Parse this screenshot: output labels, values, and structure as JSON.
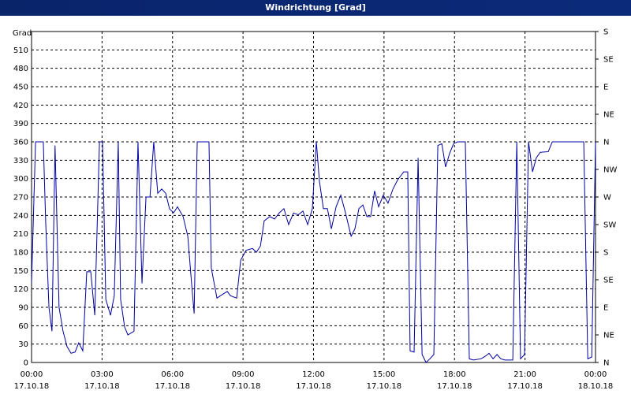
{
  "chart_data": {
    "type": "line",
    "title": "Windrichtung [Grad]",
    "y_label": "Grad",
    "color": "#0000a0",
    "grid": true,
    "xlim": [
      0,
      24
    ],
    "xticks": [
      {
        "value": 0,
        "label": "00:00 17.10.18"
      },
      {
        "value": 3,
        "label": "03:00 17.10.18"
      },
      {
        "value": 6,
        "label": "06:00 17.10.18"
      },
      {
        "value": 9,
        "label": "09:00 17.10.18"
      },
      {
        "value": 12,
        "label": "12:00 17.10.18"
      },
      {
        "value": 15,
        "label": "15:00 17.10.18"
      },
      {
        "value": 18,
        "label": "18:00 17.10.18"
      },
      {
        "value": 21,
        "label": "21:00 17.10.18"
      },
      {
        "value": 24,
        "label": "00:00 18.10.18"
      }
    ],
    "ylim": [
      0,
      540
    ],
    "yticks": [
      0,
      30,
      60,
      90,
      120,
      150,
      180,
      210,
      240,
      270,
      300,
      330,
      360,
      390,
      420,
      450,
      480,
      510
    ],
    "y2lim": [
      0,
      540
    ],
    "y2ticks": [
      {
        "value": 0,
        "label": "N"
      },
      {
        "value": 45,
        "label": "NE"
      },
      {
        "value": 90,
        "label": "E"
      },
      {
        "value": 135,
        "label": "SE"
      },
      {
        "value": 180,
        "label": "S"
      },
      {
        "value": 225,
        "label": "SW"
      },
      {
        "value": 270,
        "label": "W"
      },
      {
        "value": 315,
        "label": "NW"
      },
      {
        "value": 360,
        "label": "N"
      },
      {
        "value": 405,
        "label": "NE"
      },
      {
        "value": 450,
        "label": "E"
      },
      {
        "value": 495,
        "label": "SE"
      },
      {
        "value": 540,
        "label": "S"
      }
    ],
    "x": [
      0,
      0.17,
      0.5,
      0.6,
      0.74,
      0.87,
      1.0,
      1.17,
      1.34,
      1.51,
      1.68,
      1.85,
      2.01,
      2.18,
      2.35,
      2.52,
      2.69,
      2.89,
      3.02,
      3.16,
      3.36,
      3.52,
      3.69,
      3.79,
      3.96,
      4.1,
      4.36,
      4.53,
      4.7,
      4.87,
      5.04,
      5.2,
      5.37,
      5.54,
      5.71,
      5.87,
      6.04,
      6.21,
      6.45,
      6.65,
      6.81,
      6.92,
      7.05,
      7.55,
      7.65,
      7.89,
      8.12,
      8.33,
      8.46,
      8.73,
      8.9,
      9.13,
      9.4,
      9.57,
      9.74,
      9.9,
      10.14,
      10.34,
      10.54,
      10.74,
      10.94,
      11.15,
      11.35,
      11.55,
      11.75,
      11.95,
      12.12,
      12.25,
      12.42,
      12.59,
      12.76,
      12.96,
      13.16,
      13.36,
      13.6,
      13.76,
      13.93,
      14.1,
      14.27,
      14.43,
      14.6,
      14.77,
      14.97,
      15.17,
      15.38,
      15.58,
      15.84,
      16.01,
      16.11,
      16.28,
      16.45,
      16.62,
      16.79,
      16.95,
      17.12,
      17.29,
      17.46,
      17.62,
      17.79,
      17.96,
      18.13,
      18.46,
      18.63,
      18.8,
      19.13,
      19.3,
      19.47,
      19.64,
      19.81,
      19.97,
      20.14,
      20.48,
      20.65,
      20.81,
      20.98,
      21.15,
      21.32,
      21.48,
      21.65,
      21.99,
      22.16,
      23.5,
      23.67,
      23.84,
      24.0
    ],
    "values": [
      130,
      360,
      360,
      231,
      90,
      51,
      354,
      90,
      51,
      26,
      15,
      17,
      32,
      19,
      148,
      148,
      77,
      360,
      360,
      103,
      77,
      109,
      360,
      103,
      58,
      45,
      51,
      360,
      129,
      270,
      270,
      360,
      276,
      283,
      276,
      251,
      244,
      254,
      238,
      206,
      129,
      80,
      360,
      360,
      154,
      105,
      111,
      116,
      109,
      105,
      167,
      183,
      186,
      180,
      190,
      231,
      238,
      234,
      244,
      251,
      225,
      244,
      241,
      247,
      225,
      251,
      360,
      296,
      251,
      251,
      218,
      254,
      273,
      244,
      206,
      218,
      251,
      257,
      238,
      238,
      280,
      254,
      273,
      260,
      283,
      298,
      311,
      311,
      19,
      17,
      334,
      13,
      0,
      6,
      13,
      354,
      357,
      319,
      341,
      357,
      360,
      360,
      6,
      4,
      6,
      10,
      15,
      6,
      13,
      6,
      4,
      4,
      360,
      6,
      13,
      360,
      311,
      334,
      343,
      344,
      360,
      360,
      6,
      9,
      360
    ]
  }
}
